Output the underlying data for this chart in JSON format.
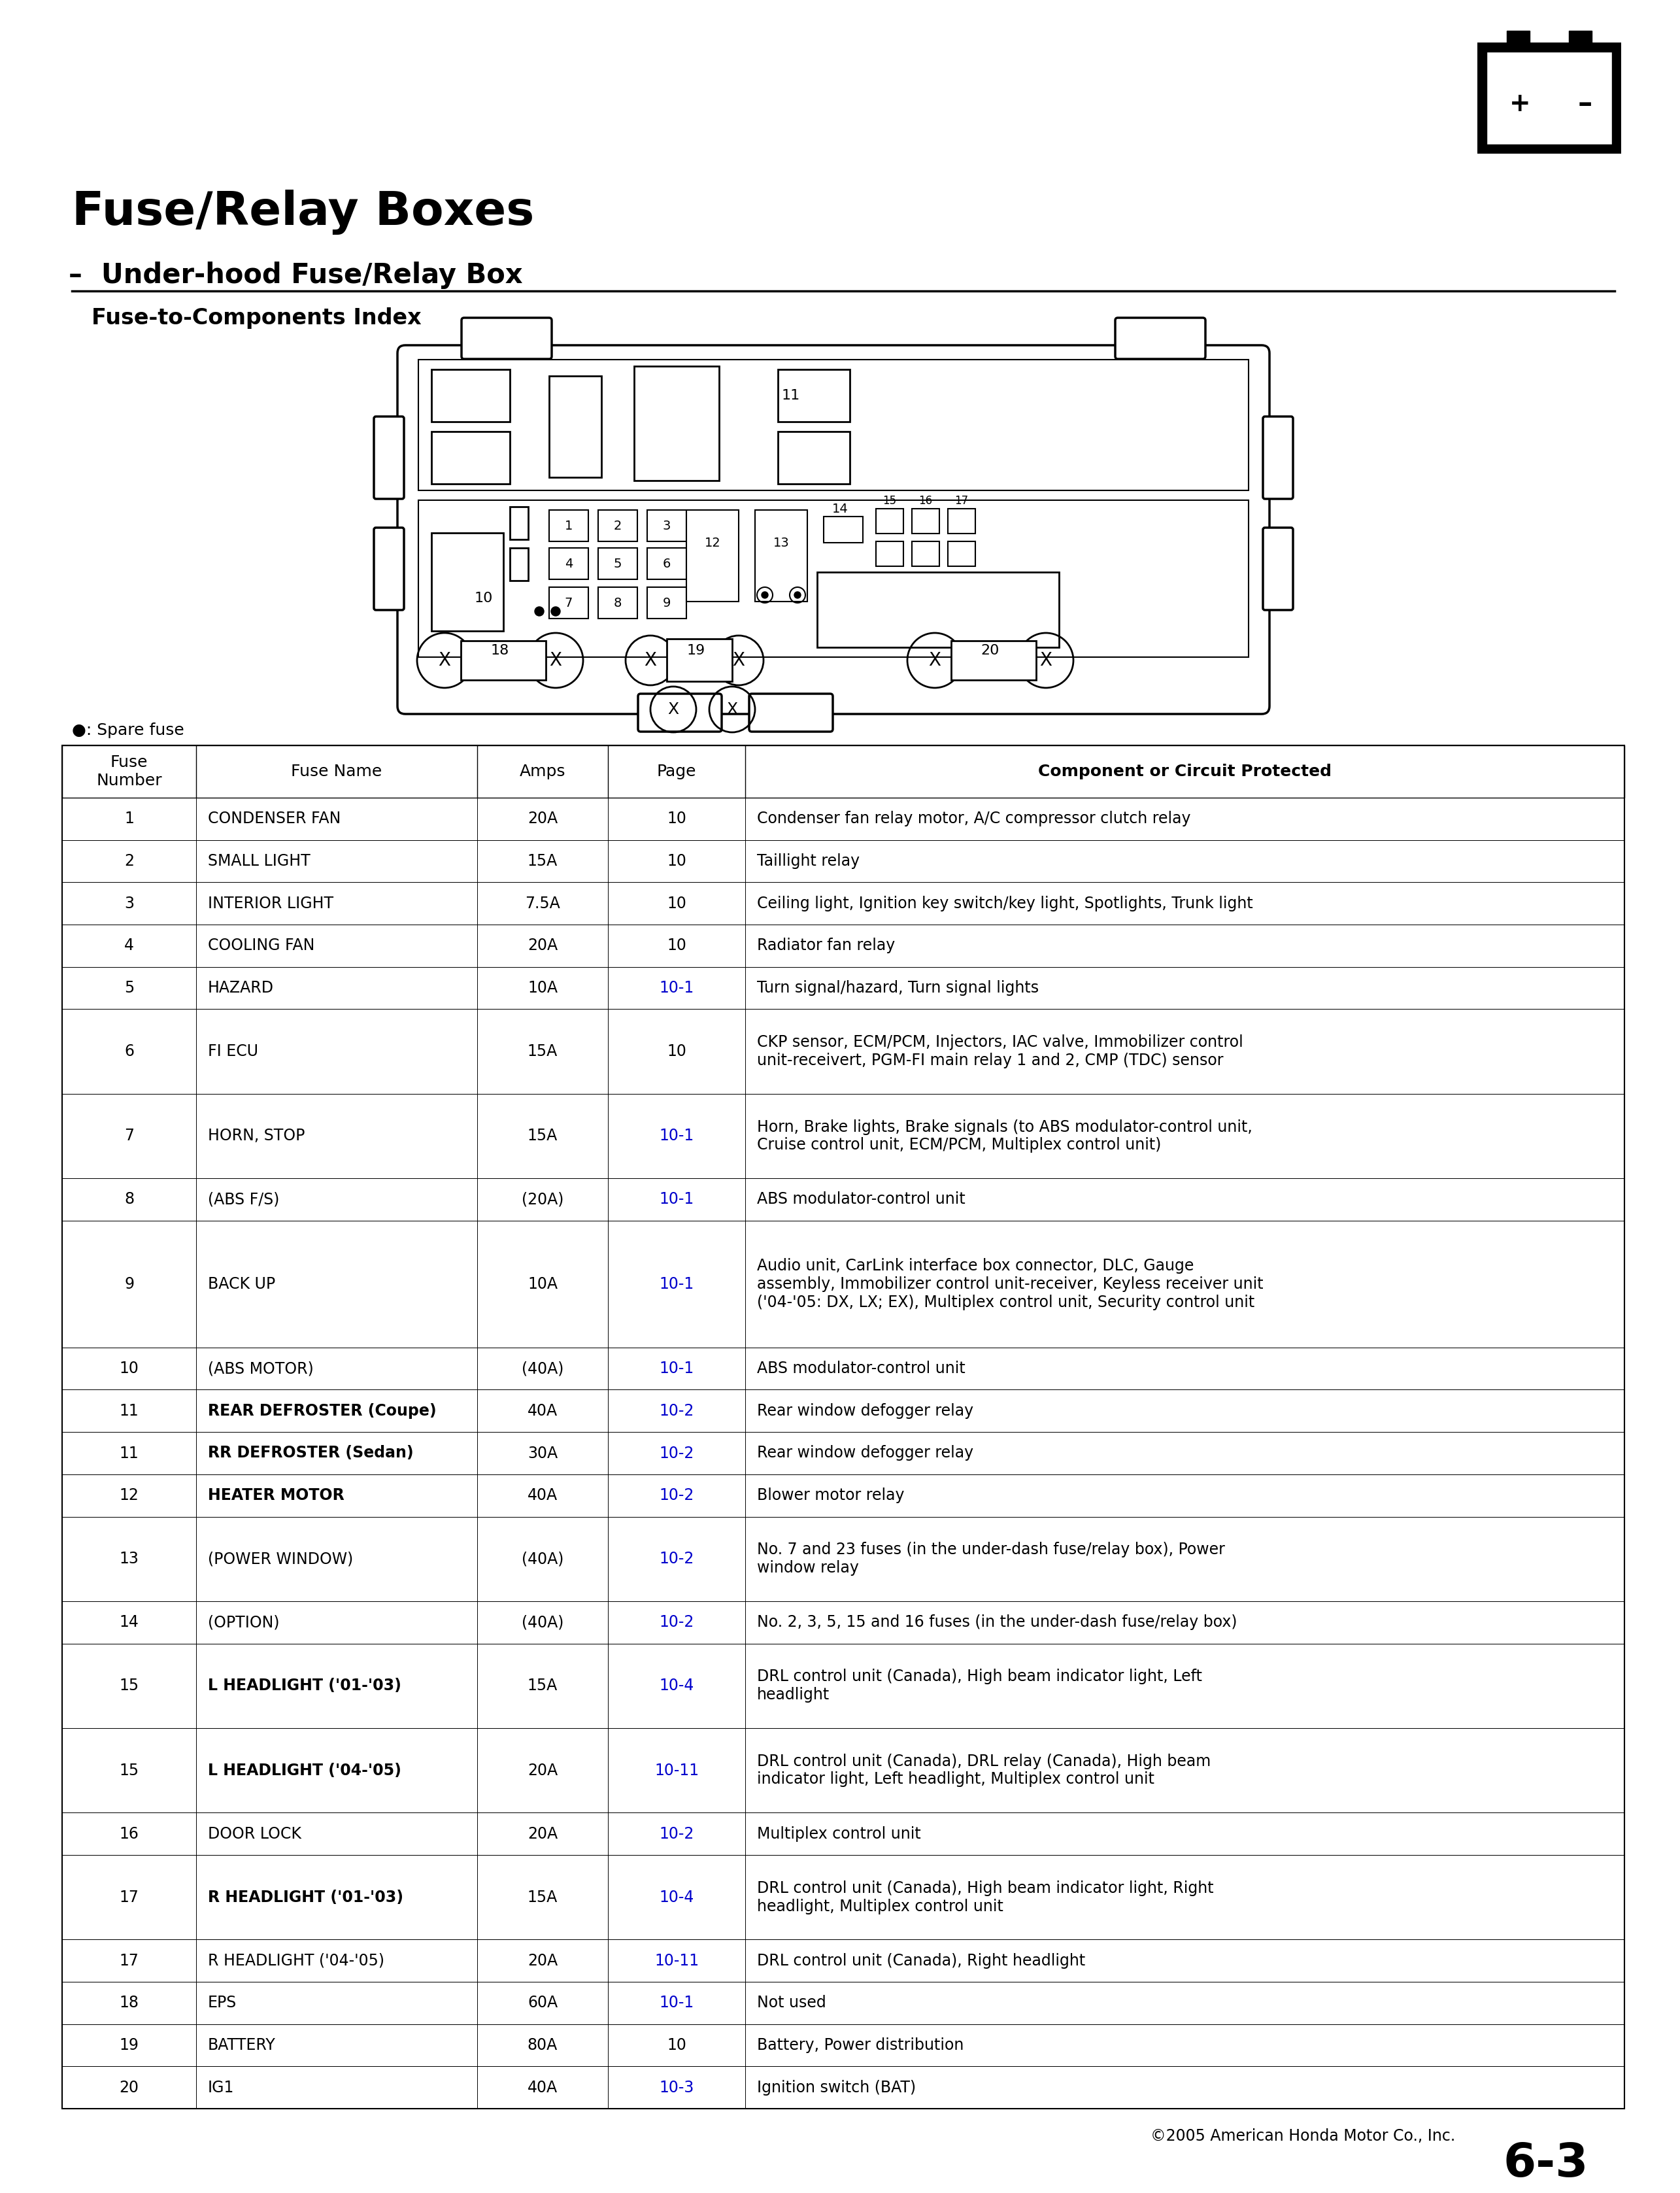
{
  "title": "Fuse/Relay Boxes",
  "subtitle": "–  Under-hood Fuse/Relay Box",
  "subtitle2": "Fuse-to-Components Index",
  "spare_fuse_note": "●: Spare fuse",
  "col_headers": [
    "Fuse\nNumber",
    "Fuse Name",
    "Amps",
    "Page",
    "Component or Circuit Protected"
  ],
  "table_rows": [
    [
      "1",
      "CONDENSER FAN",
      "20A",
      "10",
      "Condenser fan relay motor, A/C compressor clutch relay"
    ],
    [
      "2",
      "SMALL LIGHT",
      "15A",
      "10",
      "Taillight relay"
    ],
    [
      "3",
      "INTERIOR LIGHT",
      "7.5A",
      "10",
      "Ceiling light, Ignition key switch/key light, Spotlights, Trunk light"
    ],
    [
      "4",
      "COOLING FAN",
      "20A",
      "10",
      "Radiator fan relay"
    ],
    [
      "5",
      "HAZARD",
      "10A",
      "10-1",
      "Turn signal/hazard, Turn signal lights"
    ],
    [
      "6",
      "FI ECU",
      "15A",
      "10",
      "CKP sensor, ECM/PCM, Injectors, IAC valve, Immobilizer control\nunit-receivert, PGM-FI main relay 1 and 2, CMP (TDC) sensor"
    ],
    [
      "7",
      "HORN, STOP",
      "15A",
      "10-1",
      "Horn, Brake lights, Brake signals (to ABS modulator-control unit,\nCruise control unit, ECM/PCM, Multiplex control unit)"
    ],
    [
      "8",
      "(ABS F/S)",
      "(20A)",
      "10-1",
      "ABS modulator-control unit"
    ],
    [
      "9",
      "BACK UP",
      "10A",
      "10-1",
      "Audio unit, CarLink interface box connector, DLC, Gauge\nassembly, Immobilizer control unit-receiver, Keyless receiver unit\n('04-'05: DX, LX; EX), Multiplex control unit, Security control unit"
    ],
    [
      "10",
      "(ABS MOTOR)",
      "(40A)",
      "10-1",
      "ABS modulator-control unit"
    ],
    [
      "11",
      "REAR DEFROSTER (Coupe)",
      "40A",
      "10-2",
      "Rear window defogger relay"
    ],
    [
      "11",
      "RR DEFROSTER (Sedan)",
      "30A",
      "10-2",
      "Rear window defogger relay"
    ],
    [
      "12",
      "HEATER MOTOR",
      "40A",
      "10-2",
      "Blower motor relay"
    ],
    [
      "13",
      "(POWER WINDOW)",
      "(40A)",
      "10-2",
      "No. 7 and 23 fuses (in the under-dash fuse/relay box), Power\nwindow relay"
    ],
    [
      "14",
      "(OPTION)",
      "(40A)",
      "10-2",
      "No. 2, 3, 5, 15 and 16 fuses (in the under-dash fuse/relay box)"
    ],
    [
      "15",
      "L HEADLIGHT ('01-'03)",
      "15A",
      "10-4",
      "DRL control unit (Canada), High beam indicator light, Left\nheadlight"
    ],
    [
      "15",
      "L HEADLIGHT ('04-'05)",
      "20A",
      "10-11",
      "DRL control unit (Canada), DRL relay (Canada), High beam\nindicator light, Left headlight, Multiplex control unit"
    ],
    [
      "16",
      "DOOR LOCK",
      "20A",
      "10-2",
      "Multiplex control unit"
    ],
    [
      "17",
      "R HEADLIGHT ('01-'03)",
      "15A",
      "10-4",
      "DRL control unit (Canada), High beam indicator light, Right\nheadlight, Multiplex control unit"
    ],
    [
      "17",
      "R HEADLIGHT ('04-'05)",
      "20A",
      "10-11",
      "DRL control unit (Canada), Right headlight"
    ],
    [
      "18",
      "EPS",
      "60A",
      "10-1",
      "Not used"
    ],
    [
      "19",
      "BATTERY",
      "80A",
      "10",
      "Battery, Power distribution"
    ],
    [
      "20",
      "IG1",
      "40A",
      "10-3",
      "Ignition switch (BAT)"
    ]
  ],
  "bold_name_rows": [
    10,
    11,
    12,
    15,
    16,
    18
  ],
  "copyright": "©2005 American Honda Motor Co., Inc.",
  "page_number": "6-3",
  "bg_color": "#ffffff",
  "text_color": "#000000",
  "blue_color": "#0000cc"
}
